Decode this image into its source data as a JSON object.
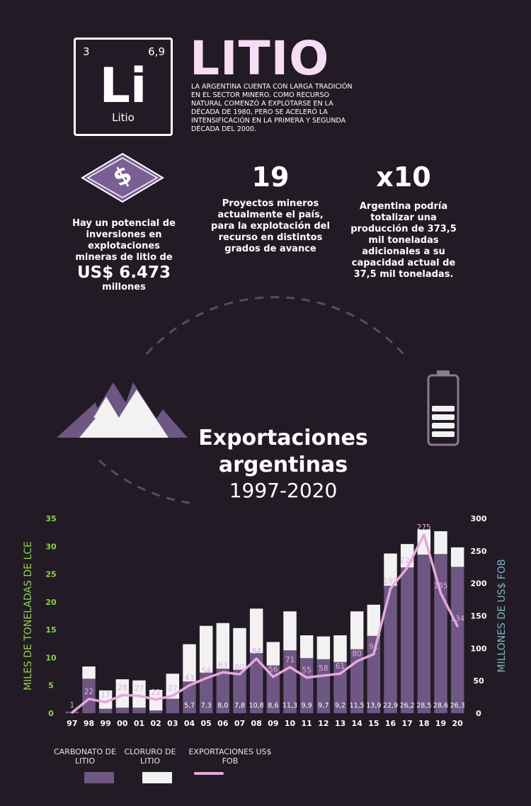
{
  "header": {
    "element": {
      "number": "3",
      "mass": "6,9",
      "symbol": "Li",
      "name": "Litio"
    },
    "title": "LITIO",
    "intro": "LA ARGENTINA CUENTA CON LARGA TRADICIÓN EN EL SECTOR MINERO. COMO RECURSO NATURAL COMENZÓ A EXPLOTARSE EN LA DÉCADA DE 1980, PERO SE ACELERÓ LA INTENSIFICACIÓN EN LA PRIMERA Y SEGUNDA DÉCADA DEL 2000."
  },
  "stats": {
    "investment": {
      "icon_symbol": "$",
      "text": "Hay un potencial de inversiones en explotaciones mineras de litio de",
      "amount": "US$ 6.473",
      "unit": "millones"
    },
    "projects": {
      "number": "19",
      "text": "Proyectos mineros actualmente el país, para la explotación del recurso en distintos grados de avance"
    },
    "production": {
      "number": "x10",
      "text": "Argentina podría totalizar una producción de 373,5 mil toneladas adicionales a su capacidad actual de 37,5 mil toneladas."
    }
  },
  "section": {
    "title": "Exportaciones argentinas",
    "years": "1997-2020"
  },
  "colors": {
    "background": "#221b25",
    "carbonate": "#6e5783",
    "chloride": "#f2f2f2",
    "exports_line": "#e6a8dc",
    "left_axis": "#8fd14f",
    "right_axis": "#7fb4c8",
    "accent": "#f6dcf4"
  },
  "chart_data": {
    "type": "bar",
    "categories": [
      "97",
      "98",
      "99",
      "00",
      "01",
      "02",
      "03",
      "04",
      "05",
      "06",
      "07",
      "08",
      "09",
      "10",
      "11",
      "12",
      "13",
      "14",
      "15",
      "16",
      "17",
      "18",
      "19",
      "20"
    ],
    "ylabel": "MILES DE TONELADAS DE LCE",
    "y2label": "MILLONES DE US$ FOB",
    "ylim": [
      0,
      35
    ],
    "y2lim": [
      0,
      300
    ],
    "yticks": [
      0,
      5,
      10,
      15,
      20,
      25,
      30,
      35
    ],
    "y2ticks": [
      0,
      50,
      100,
      150,
      200,
      250,
      300
    ],
    "series": [
      {
        "name": "CARBONATO DE LITIO",
        "type": "bar",
        "values": [
          0.3,
          6.2,
          0.8,
          1.0,
          1.0,
          0.5,
          2.6,
          5.7,
          7.3,
          8.0,
          7.8,
          10.8,
          8.6,
          11.3,
          9.9,
          9.7,
          9.2,
          11.5,
          13.9,
          22.9,
          26.2,
          28.5,
          28.6,
          26.3
        ],
        "labels": [
          "",
          "",
          "",
          "",
          "",
          "",
          "",
          "5,7",
          "7,3",
          "8,0",
          "7,8",
          "10,8",
          "8,6",
          "11,3",
          "9,9",
          "9,7",
          "9,2",
          "11,5",
          "13,9",
          "22,9",
          "26,2",
          "28,5",
          "28,6",
          "26,3"
        ]
      },
      {
        "name": "CLORURO DE LITIO",
        "type": "bar",
        "values": [
          0,
          2.2,
          3.3,
          5.1,
          4.9,
          3.7,
          4.5,
          6.7,
          8.4,
          8.2,
          7.5,
          8.0,
          4.2,
          7.0,
          4.1,
          4.1,
          4.8,
          6.8,
          5.6,
          5.8,
          4.2,
          4.5,
          4.1,
          3.5
        ]
      },
      {
        "name": "EXPORTACIONES US$ FOB",
        "type": "line",
        "axis": "right",
        "values": [
          1,
          22,
          17,
          28,
          27,
          21,
          27,
          43,
          54,
          63,
          60,
          84,
          56,
          71,
          55,
          58,
          61,
          80,
          91,
          192,
          224,
          275,
          185,
          134
        ]
      }
    ],
    "legend": "bottom-left"
  }
}
